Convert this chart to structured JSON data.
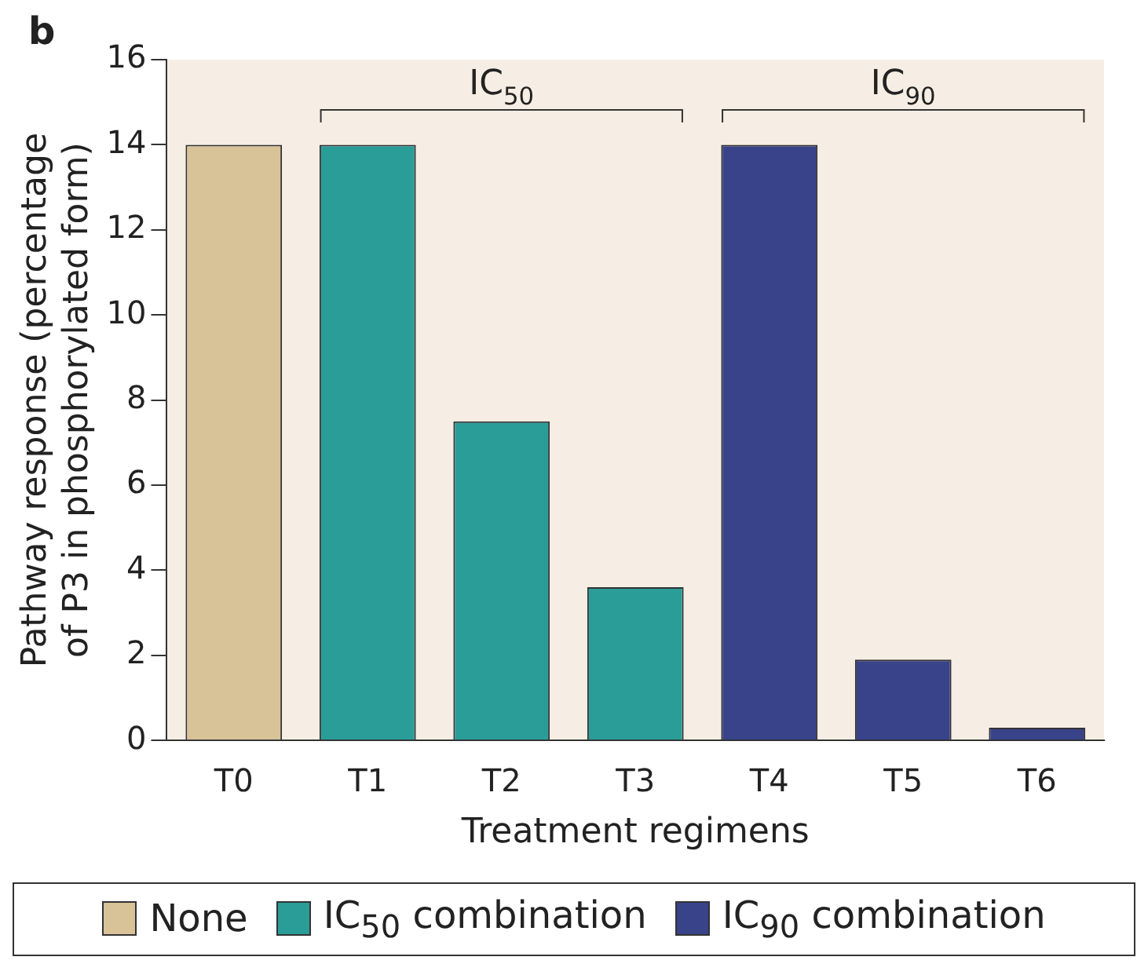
{
  "chart_data": {
    "type": "bar",
    "xlabel": "Treatment regimens",
    "ylabel": "Pathway response (percentage of P3 in phosphorylated form)",
    "categories": [
      "T0",
      "T1",
      "T2",
      "T3",
      "T4",
      "T5",
      "T6"
    ],
    "series": [
      {
        "name": "None",
        "color": "#d8c398",
        "values": [
          14,
          null,
          null,
          null,
          null,
          null,
          null
        ]
      },
      {
        "name": "IC$_{50}$ combination",
        "color": "#2b9d99",
        "values": [
          null,
          14,
          7.5,
          3.6,
          null,
          null,
          null
        ]
      },
      {
        "name": "IC$_{90}$ combination",
        "color": "#38438a",
        "values": [
          null,
          null,
          null,
          null,
          14,
          1.9,
          0.3
        ]
      }
    ],
    "ylim": [
      0,
      16
    ],
    "yticks": [
      0,
      2,
      4,
      6,
      8,
      10,
      12,
      14,
      16
    ],
    "grid": false,
    "legend": "bottom",
    "annotations": [
      "b",
      "IC$_{50}$",
      "IC$_{90}$"
    ]
  }
}
